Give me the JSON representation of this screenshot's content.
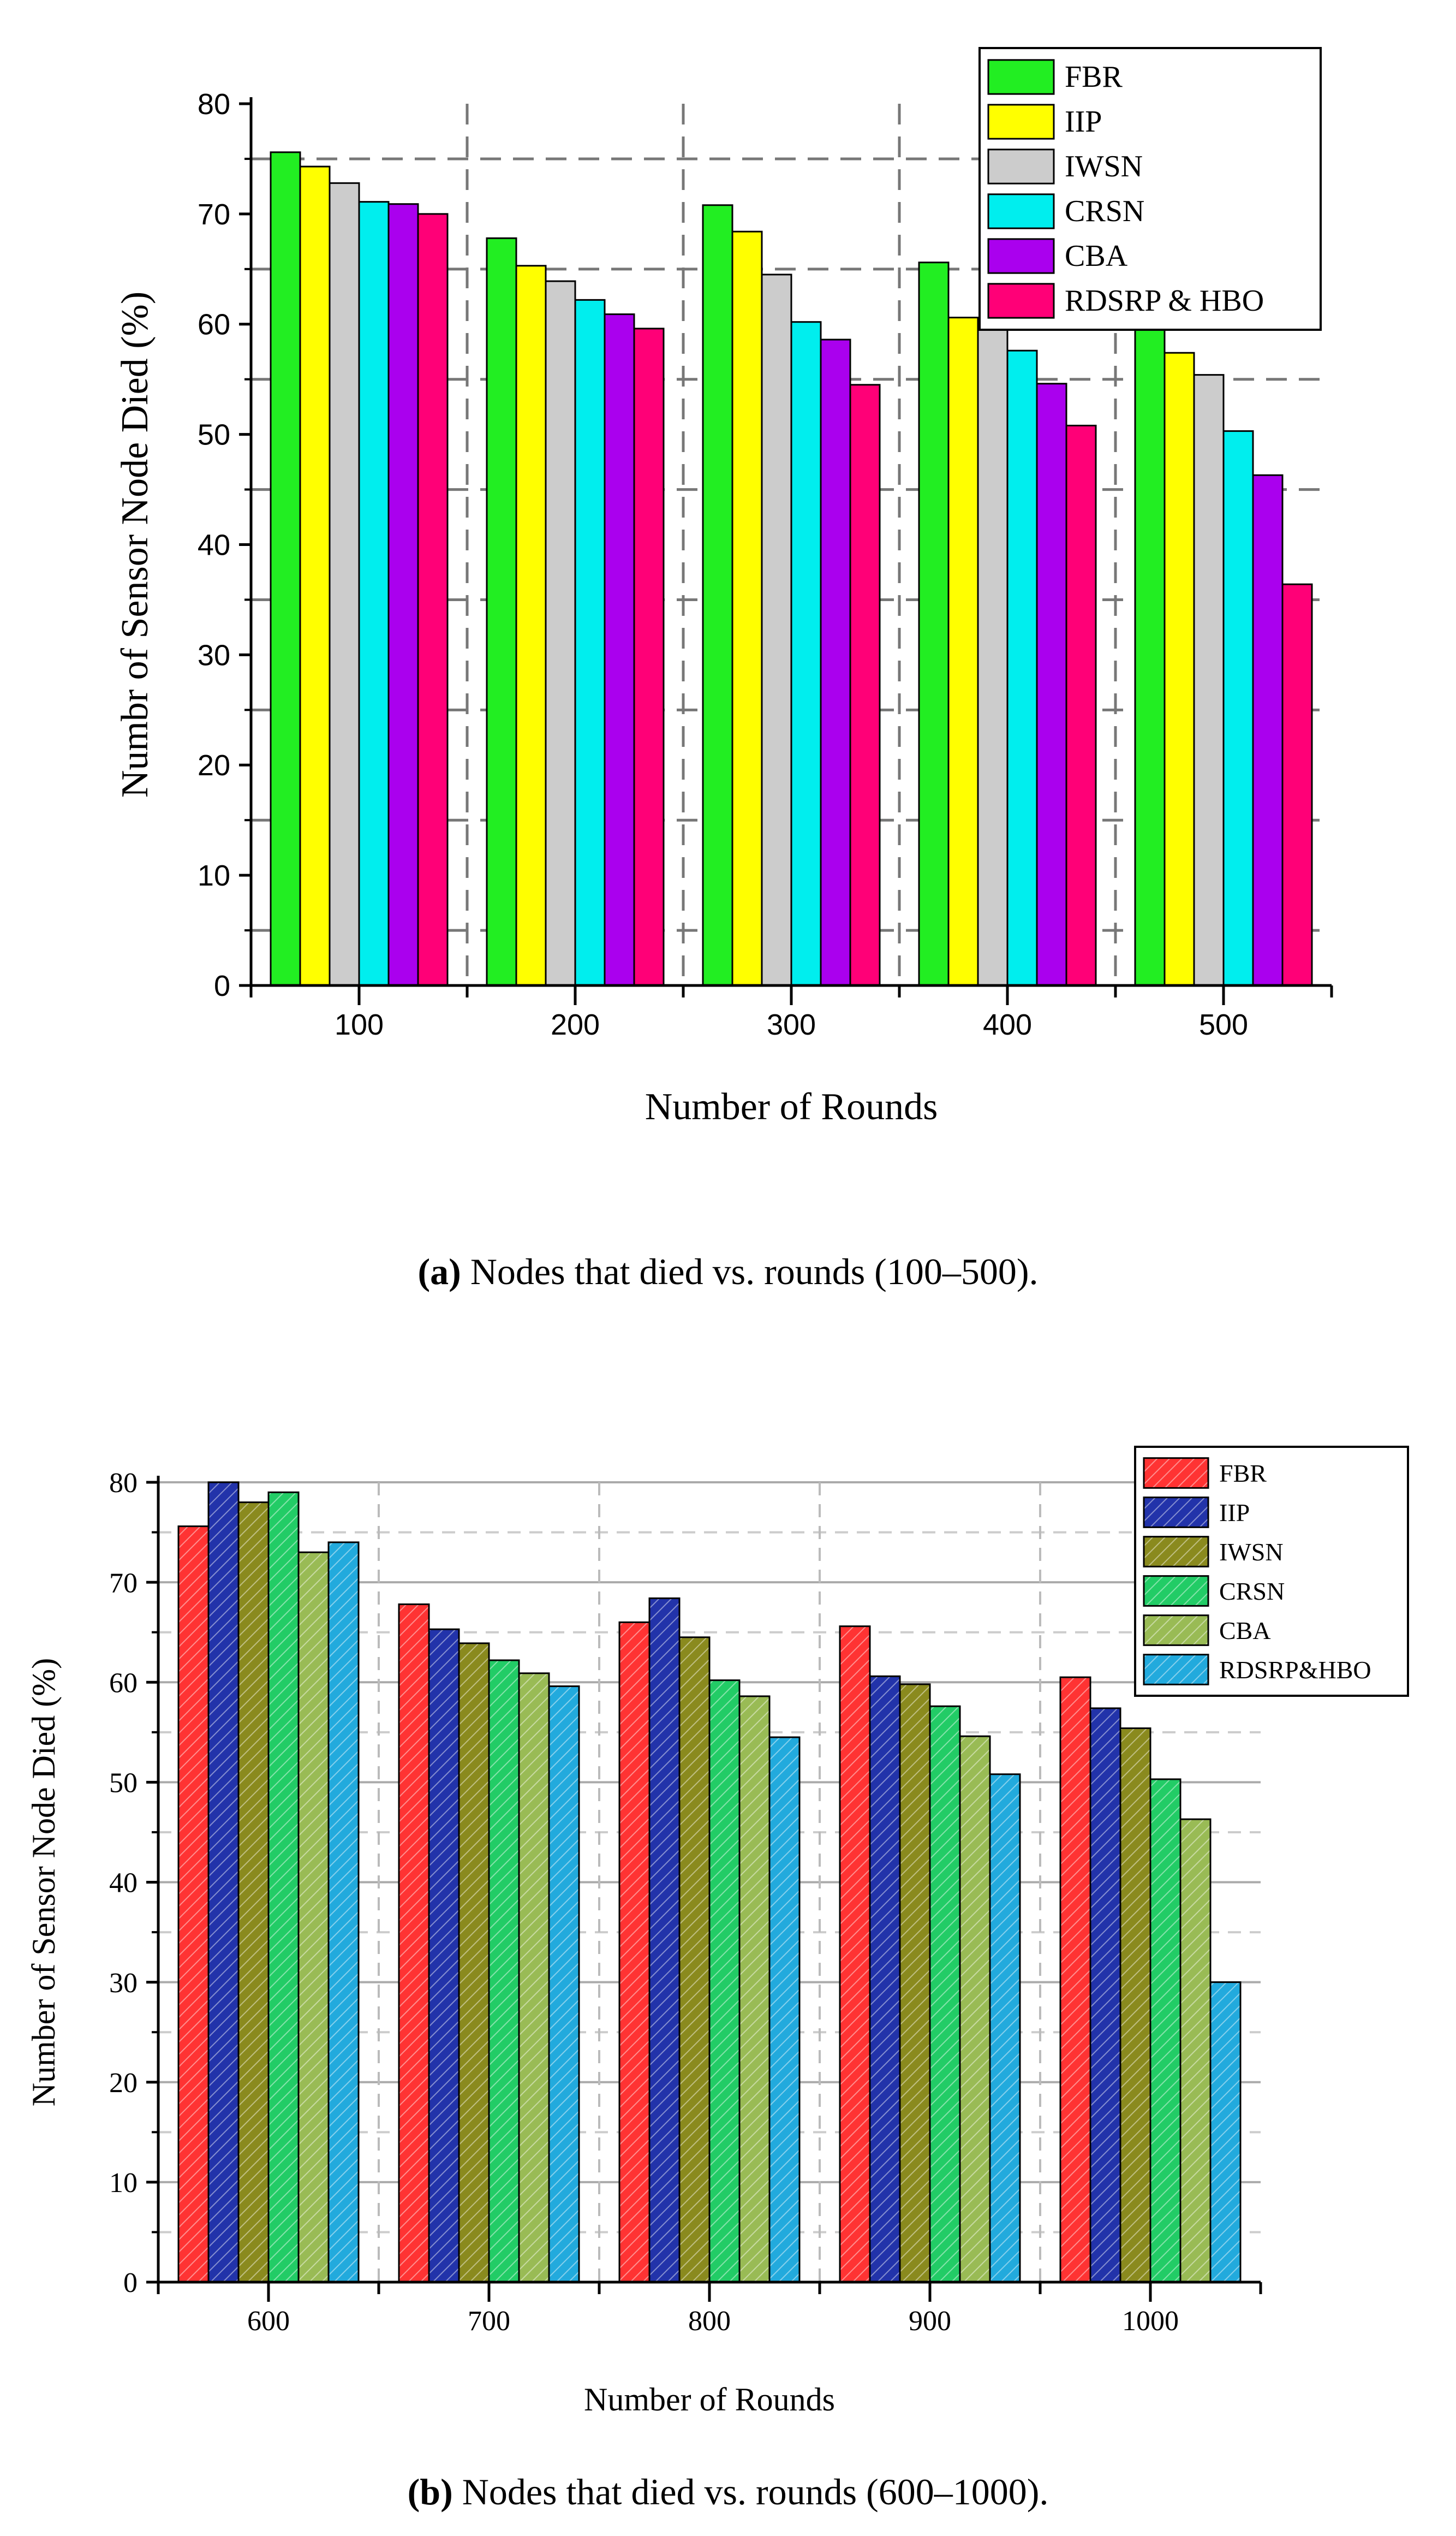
{
  "figure_a": {
    "caption_tag": "(a)",
    "caption_text": " Nodes that died vs. rounds (100–500)."
  },
  "figure_b": {
    "caption_tag": "(b)",
    "caption_text": " Nodes that died vs. rounds (600–1000)."
  },
  "chart_data": [
    {
      "type": "bar",
      "title": "",
      "xlabel": "Number of Rounds",
      "ylabel": "Numbr of Sensor Node Died (%)",
      "ylim": [
        0,
        80
      ],
      "yticks": [
        0,
        10,
        20,
        30,
        40,
        50,
        60,
        70,
        80
      ],
      "grid": true,
      "legend_position": "top-right",
      "categories": [
        "100",
        "200",
        "300",
        "400",
        "500"
      ],
      "series": [
        {
          "name": "FBR",
          "color": "#22ee22",
          "values": [
            75.6,
            67.8,
            70.8,
            65.6,
            60.5
          ]
        },
        {
          "name": "IIP",
          "color": "#ffff00",
          "values": [
            74.3,
            65.3,
            68.4,
            60.6,
            57.4
          ]
        },
        {
          "name": "IWSN",
          "color": "#cccccc",
          "values": [
            72.8,
            63.9,
            64.5,
            59.8,
            55.4
          ]
        },
        {
          "name": "CRSN",
          "color": "#00eeee",
          "values": [
            71.1,
            62.2,
            60.2,
            57.6,
            50.3
          ]
        },
        {
          "name": "CBA",
          "color": "#aa00ee",
          "values": [
            70.9,
            60.9,
            58.6,
            54.6,
            46.3
          ]
        },
        {
          "name": "RDSRP & HBO",
          "color": "#ff0077",
          "values": [
            70.0,
            59.6,
            54.5,
            50.8,
            36.4
          ]
        }
      ]
    },
    {
      "type": "bar",
      "title": "",
      "xlabel": "Number of Rounds",
      "ylabel": "Number of Sensor Node Died (%)",
      "ylim": [
        0,
        80
      ],
      "yticks": [
        0,
        10,
        20,
        30,
        40,
        50,
        60,
        70,
        80
      ],
      "grid": true,
      "legend_position": "top-right",
      "categories": [
        "600",
        "700",
        "800",
        "900",
        "1000"
      ],
      "series": [
        {
          "name": "FBR",
          "color": "#ff3333",
          "values": [
            75.6,
            67.8,
            66.0,
            65.6,
            60.5
          ]
        },
        {
          "name": "IIP",
          "color": "#2233aa",
          "values": [
            80.0,
            65.3,
            68.4,
            60.6,
            57.4
          ]
        },
        {
          "name": "IWSN",
          "color": "#8a8a1e",
          "values": [
            78.0,
            63.9,
            64.5,
            59.8,
            55.4
          ]
        },
        {
          "name": "CRSN",
          "color": "#22cc66",
          "values": [
            79.0,
            62.2,
            60.2,
            57.6,
            50.3
          ]
        },
        {
          "name": "CBA",
          "color": "#99bb55",
          "values": [
            73.0,
            60.9,
            58.6,
            54.6,
            46.3
          ]
        },
        {
          "name": "RDSRP&HBO",
          "color": "#22aadd",
          "values": [
            74.0,
            59.6,
            54.5,
            50.8,
            30.0
          ]
        }
      ]
    }
  ]
}
